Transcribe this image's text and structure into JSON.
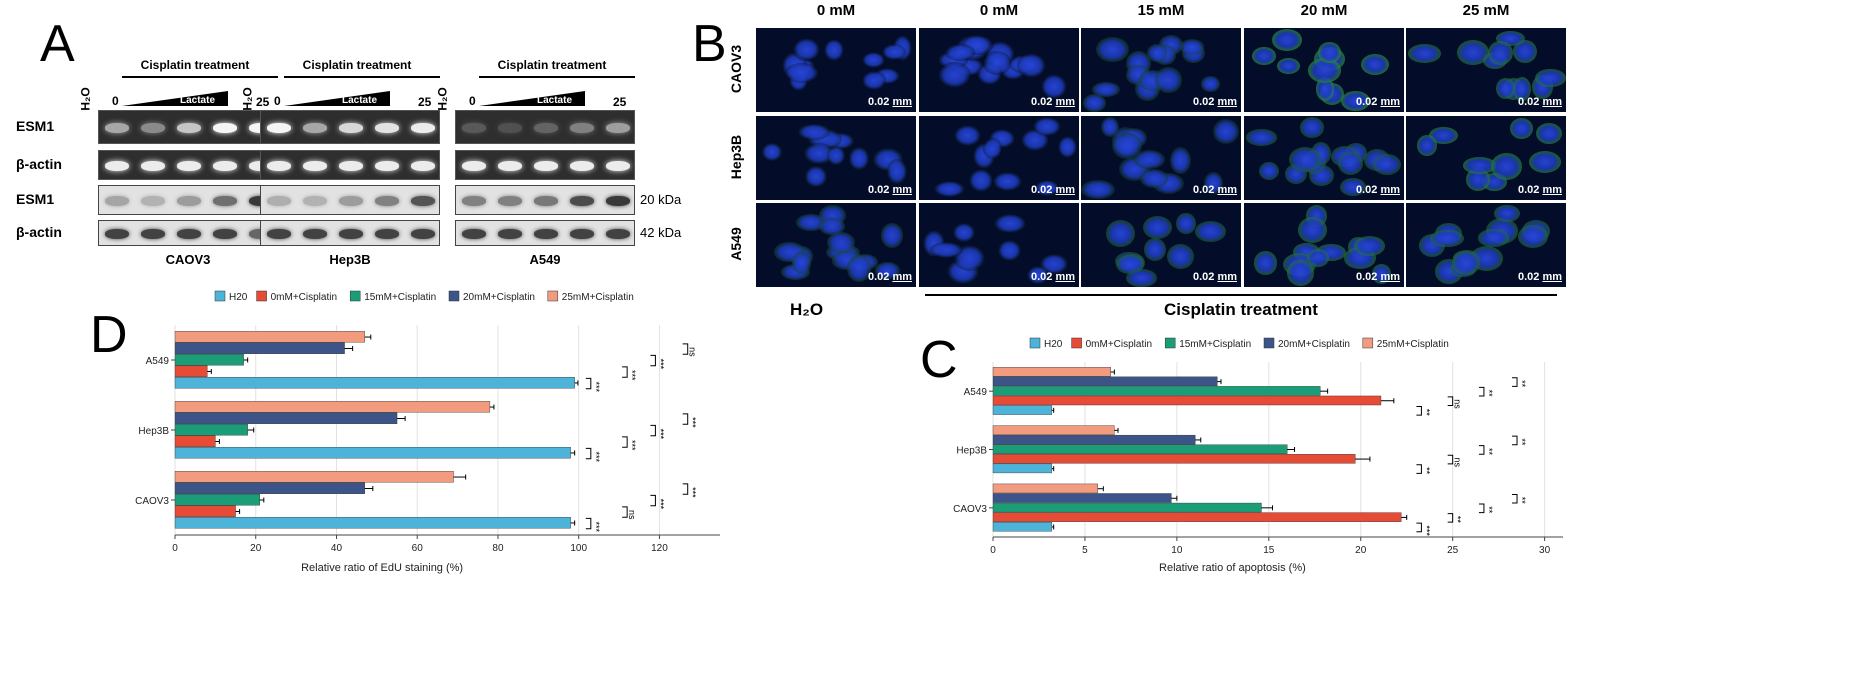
{
  "colors": {
    "h2o": "#4db3d8",
    "mM0": "#e64b35",
    "mM15": "#1b9e77",
    "mM20": "#3c5488",
    "mM25": "#f39b7f"
  },
  "panelA": {
    "letter": "A",
    "treatment": "Cisplatin treatment",
    "lane_h2o": "H₂O",
    "lane_zero": "0",
    "lane_max": "25",
    "wedge": "Lactate",
    "rows": [
      "ESM1",
      "β-actin",
      "ESM1",
      "β-actin"
    ],
    "sizes": [
      "20 kDa",
      "42 kDa"
    ],
    "cells": [
      "CAOV3",
      "Hep3B",
      "A549"
    ]
  },
  "panelB": {
    "letter": "B",
    "columns": [
      "0 mM",
      "0 mM",
      "15 mM",
      "20 mM",
      "25 mM"
    ],
    "rows": [
      "CAOV3",
      "Hep3B",
      "A549"
    ],
    "scale_value": "0.02",
    "scale_unit": "mm",
    "h2o": "H₂O",
    "treatment": "Cisplatin treatment"
  },
  "panelD": {
    "letter": "D"
  },
  "panelC": {
    "letter": "C"
  },
  "chart_data": [
    {
      "panel": "D",
      "type": "bar",
      "orientation": "horizontal",
      "categories": [
        "CAOV3",
        "Hep3B",
        "A549"
      ],
      "legend": [
        "H20",
        "0mM+Cisplatin",
        "15mM+Cisplatin",
        "20mM+Cisplatin",
        "25mM+Cisplatin"
      ],
      "series": [
        {
          "name": "H20",
          "values": [
            98,
            98,
            99
          ],
          "errors": [
            1,
            1,
            0.8
          ]
        },
        {
          "name": "0mM+Cisplatin",
          "values": [
            15,
            10,
            8
          ],
          "errors": [
            1,
            1,
            1
          ]
        },
        {
          "name": "15mM+Cisplatin",
          "values": [
            21,
            18,
            17
          ],
          "errors": [
            1,
            1.5,
            1
          ]
        },
        {
          "name": "20mM+Cisplatin",
          "values": [
            47,
            55,
            42
          ],
          "errors": [
            2,
            2,
            2
          ]
        },
        {
          "name": "25mM+Cisplatin",
          "values": [
            69,
            78,
            47
          ],
          "errors": [
            3,
            1,
            1.5
          ]
        }
      ],
      "xlabel": "Relative ratio of EdU staining (%)",
      "xticks": [
        0,
        20,
        40,
        60,
        80,
        100,
        120
      ],
      "xlim": [
        0,
        135
      ],
      "grid": true,
      "legend_position": "top",
      "significance": {
        "CAOV3": [
          "***",
          "ns",
          "***",
          "***"
        ],
        "Hep3B": [
          "***",
          "***",
          "***",
          "***"
        ],
        "A549": [
          "***",
          "***",
          "***",
          "ns"
        ]
      }
    },
    {
      "panel": "C",
      "type": "bar",
      "orientation": "horizontal",
      "categories": [
        "CAOV3",
        "Hep3B",
        "A549"
      ],
      "legend": [
        "H20",
        "0mM+Cisplatin",
        "15mM+Cisplatin",
        "20mM+Cisplatin",
        "25mM+Cisplatin"
      ],
      "series": [
        {
          "name": "H20",
          "values": [
            3.2,
            3.2,
            3.2
          ],
          "errors": [
            0.1,
            0.1,
            0.1
          ]
        },
        {
          "name": "0mM+Cisplatin",
          "values": [
            22.2,
            19.7,
            21.1
          ],
          "errors": [
            0.3,
            0.8,
            0.7
          ]
        },
        {
          "name": "15mM+Cisplatin",
          "values": [
            14.6,
            16.0,
            17.8
          ],
          "errors": [
            0.6,
            0.4,
            0.4
          ]
        },
        {
          "name": "20mM+Cisplatin",
          "values": [
            9.7,
            11.0,
            12.2
          ],
          "errors": [
            0.3,
            0.3,
            0.2
          ]
        },
        {
          "name": "25mM+Cisplatin",
          "values": [
            5.7,
            6.6,
            6.4
          ],
          "errors": [
            0.3,
            0.2,
            0.2
          ]
        }
      ],
      "xlabel": "Relative ratio of apoptosis (%)",
      "xticks": [
        0,
        5,
        10,
        15,
        20,
        25,
        30
      ],
      "xlim": [
        0,
        31
      ],
      "grid": true,
      "legend_position": "top",
      "significance": {
        "CAOV3": [
          "***",
          "**",
          "**",
          "**"
        ],
        "Hep3B": [
          "**",
          "ns",
          "**",
          "**"
        ],
        "A549": [
          "**",
          "ns",
          "**",
          "**"
        ]
      }
    }
  ]
}
